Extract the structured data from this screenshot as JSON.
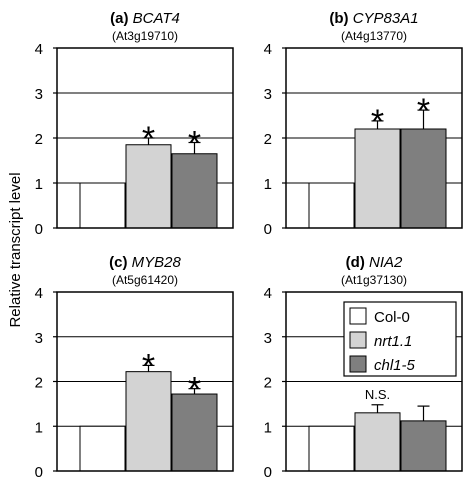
{
  "y_axis_label": "Relative transcript level",
  "legend": [
    {
      "label": "Col-0",
      "color": "#ffffff"
    },
    {
      "label": "nrt1.1",
      "color": "#d3d3d3"
    },
    {
      "label": "chl1-5",
      "color": "#7f7f7f"
    }
  ],
  "chart_data": [
    {
      "type": "bar",
      "panel_letter": "(a)",
      "gene": "BCAT4",
      "locus": "(At3g19710)",
      "categories": [
        "Col-0",
        "nrt1.1",
        "chl1-5"
      ],
      "values": [
        1.0,
        1.85,
        1.65
      ],
      "errors": [
        0,
        0.15,
        0.25
      ],
      "annotations": [
        "",
        "*",
        "*"
      ],
      "ylim": [
        0,
        4
      ],
      "yticks": [
        "0",
        "1",
        "2",
        "3",
        "4"
      ]
    },
    {
      "type": "bar",
      "panel_letter": "(b)",
      "gene": "CYP83A1",
      "locus": "(At4g13770)",
      "categories": [
        "Col-0",
        "nrt1.1",
        "chl1-5"
      ],
      "values": [
        1.0,
        2.2,
        2.2
      ],
      "errors": [
        0,
        0.18,
        0.42
      ],
      "annotations": [
        "",
        "*",
        "*"
      ],
      "ylim": [
        0,
        4
      ],
      "yticks": [
        "0",
        "1",
        "2",
        "3",
        "4"
      ]
    },
    {
      "type": "bar",
      "panel_letter": "(c)",
      "gene": "MYB28",
      "locus": "(At5g61420)",
      "categories": [
        "Col-0",
        "nrt1.1",
        "chl1-5"
      ],
      "values": [
        1.0,
        2.22,
        1.72
      ],
      "errors": [
        0,
        0.14,
        0.12
      ],
      "annotations": [
        "",
        "*",
        "*"
      ],
      "ylim": [
        0,
        4
      ],
      "yticks": [
        "0",
        "1",
        "2",
        "3",
        "4"
      ]
    },
    {
      "type": "bar",
      "panel_letter": "(d)",
      "gene": "NIA2",
      "locus": "(At1g37130)",
      "categories": [
        "Col-0",
        "nrt1.1",
        "chl1-5"
      ],
      "values": [
        1.0,
        1.3,
        1.12
      ],
      "errors": [
        0,
        0.18,
        0.33
      ],
      "annotations": [
        "",
        "N.S.",
        ""
      ],
      "ylim": [
        0,
        4
      ],
      "yticks": [
        "0",
        "1",
        "2",
        "3",
        "4"
      ]
    }
  ]
}
